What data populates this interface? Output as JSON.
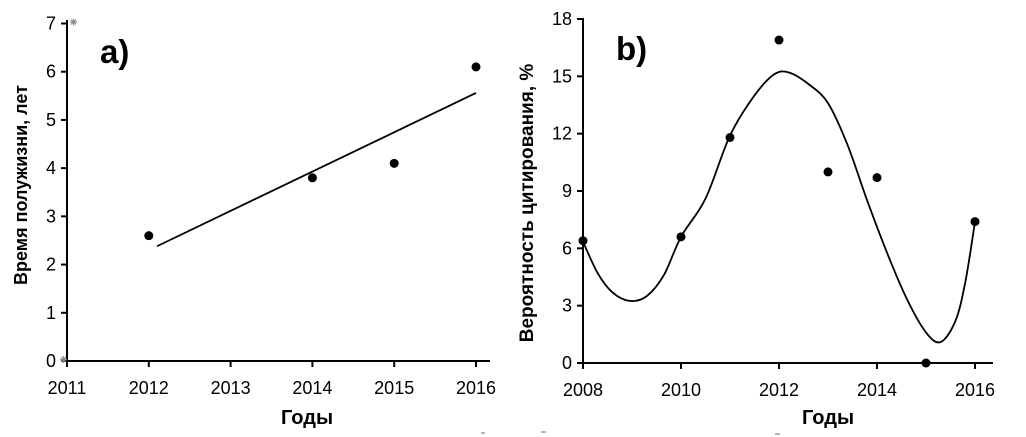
{
  "figure": {
    "background": "#ffffff",
    "text_color": "#000000",
    "point_color": "#000000",
    "line_color": "#000000",
    "axis_end_marker_color": "#8a8a8a"
  },
  "chart_data": [
    {
      "panel_label": "a)",
      "type": "scatter",
      "title": "",
      "xlabel": "Годы",
      "ylabel": "Время полужизни, лет",
      "xlim": [
        2011,
        2016
      ],
      "ylim": [
        0,
        7
      ],
      "xticks": [
        2011,
        2012,
        2013,
        2014,
        2015,
        2016
      ],
      "yticks": [
        0,
        1,
        2,
        3,
        4,
        5,
        6,
        7
      ],
      "grid": false,
      "legend": "none",
      "points": [
        [
          2012,
          2.6
        ],
        [
          2014,
          3.8
        ],
        [
          2015,
          4.1
        ],
        [
          2016,
          6.1
        ]
      ],
      "trendline": {
        "x1": 2012.1,
        "y1": 2.38,
        "x2": 2016.0,
        "y2": 5.56
      }
    },
    {
      "panel_label": "b)",
      "type": "scatter",
      "title": "",
      "xlabel": "Годы",
      "ylabel": "Вероятность цитирования, %",
      "xlim": [
        2008,
        2016
      ],
      "ylim": [
        0,
        18
      ],
      "xticks": [
        2008,
        2010,
        2012,
        2014,
        2016
      ],
      "yticks": [
        0,
        3,
        6,
        9,
        12,
        15,
        18
      ],
      "grid": false,
      "legend": "none",
      "points": [
        [
          2008,
          6.4
        ],
        [
          2010,
          6.6
        ],
        [
          2011,
          11.8
        ],
        [
          2012,
          16.9
        ],
        [
          2013,
          10.0
        ],
        [
          2014,
          9.7
        ],
        [
          2015,
          0.0
        ],
        [
          2016,
          7.4
        ]
      ],
      "fit_curve": [
        [
          2008.0,
          6.35
        ],
        [
          2008.3,
          4.7
        ],
        [
          2008.6,
          3.7
        ],
        [
          2008.95,
          3.25
        ],
        [
          2009.3,
          3.5
        ],
        [
          2009.65,
          4.6
        ],
        [
          2010.0,
          6.6
        ],
        [
          2010.5,
          8.6
        ],
        [
          2011.0,
          11.9
        ],
        [
          2011.5,
          14.0
        ],
        [
          2011.9,
          15.1
        ],
        [
          2012.2,
          15.2
        ],
        [
          2012.6,
          14.6
        ],
        [
          2013.0,
          13.6
        ],
        [
          2013.4,
          11.4
        ],
        [
          2013.8,
          8.5
        ],
        [
          2014.2,
          5.8
        ],
        [
          2014.6,
          3.4
        ],
        [
          2015.0,
          1.6
        ],
        [
          2015.3,
          1.1
        ],
        [
          2015.6,
          2.2
        ],
        [
          2015.8,
          4.2
        ],
        [
          2016.0,
          7.4
        ]
      ]
    }
  ]
}
